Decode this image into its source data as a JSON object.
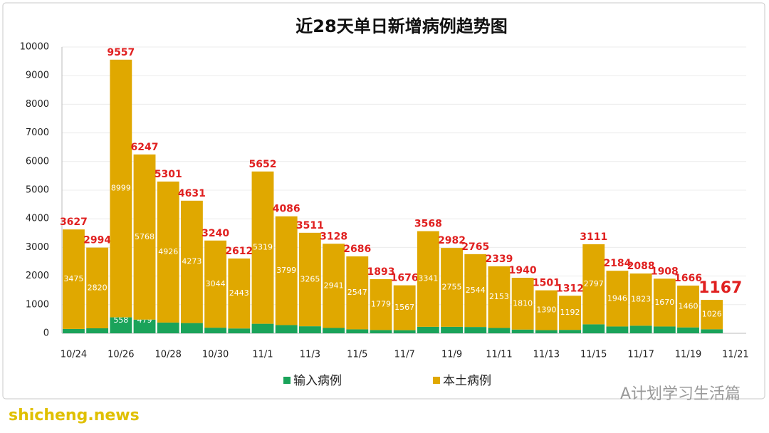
{
  "chart_data": {
    "type": "stacked_bar",
    "title": "近28天单日新增病例趋势图",
    "categories": [
      "10/24",
      null,
      "10/26",
      null,
      "10/28",
      null,
      "10/30",
      null,
      "11/1",
      null,
      "11/3",
      null,
      "11/5",
      null,
      "11/7",
      null,
      "11/9",
      null,
      "11/11",
      null,
      "11/13",
      null,
      "11/15",
      null,
      "11/17",
      null,
      "11/19",
      null
    ],
    "axis_end_label": "11/21",
    "series": [
      {
        "name": "输入病例",
        "color": "#1aa35a",
        "values": [
          152,
          174,
          558,
          479,
          375,
          358,
          196,
          169,
          333,
          287,
          246,
          187,
          139,
          114,
          109,
          227,
          227,
          221,
          186,
          130,
          111,
          120,
          314,
          238,
          265,
          238,
          206,
          141
        ]
      },
      {
        "name": "本土病例",
        "color": "#e0a800",
        "values": [
          3475,
          2820,
          8999,
          5768,
          4926,
          4273,
          3044,
          2443,
          5319,
          3799,
          3265,
          2941,
          2547,
          1779,
          1567,
          3341,
          2755,
          2544,
          2153,
          1810,
          1390,
          1192,
          2797,
          1946,
          1823,
          1670,
          1460,
          1026
        ]
      }
    ],
    "totals": [
      3627,
      2994,
      9557,
      6247,
      5301,
      4631,
      3240,
      2612,
      5652,
      4086,
      3511,
      3128,
      2686,
      1893,
      1676,
      3568,
      2982,
      2765,
      2339,
      1940,
      1501,
      1312,
      3111,
      2184,
      2088,
      1908,
      1666,
      1167
    ],
    "totals_color": "#e02020",
    "ylim": [
      0,
      10000
    ],
    "yticks": [
      0,
      1000,
      2000,
      3000,
      4000,
      5000,
      6000,
      7000,
      8000,
      9000,
      10000
    ],
    "grid": true,
    "legend": "bottom"
  },
  "watermark": "A计划学习生活篇",
  "site": "shicheng.news"
}
